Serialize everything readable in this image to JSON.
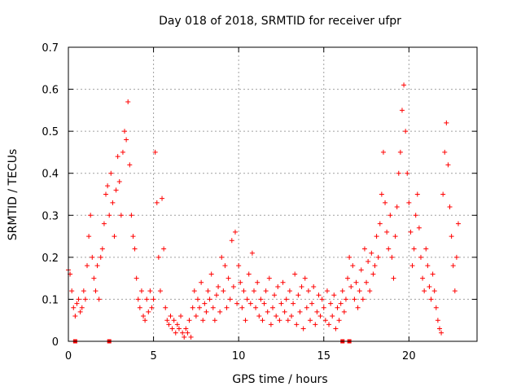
{
  "chart_data": {
    "type": "scatter",
    "title": "Day 018 of 2018, SRMTID for receiver ufpr",
    "xlabel": "GPS time / hours",
    "ylabel": "SRMTID / TECUs",
    "xlim": [
      0,
      24
    ],
    "ylim": [
      0,
      0.7
    ],
    "x_ticks": [
      0,
      5,
      10,
      15,
      20
    ],
    "x_tick_labels": [
      "0",
      "5",
      "10",
      "15",
      "20"
    ],
    "y_ticks": [
      0,
      0.1,
      0.2,
      0.3,
      0.4,
      0.5,
      0.6,
      0.7
    ],
    "y_tick_labels": [
      "0",
      "0.1",
      "0.2",
      "0.3",
      "0.4",
      "0.5",
      "0.6",
      "0.7"
    ],
    "grid": true,
    "marker": "plus",
    "color": "#ff0000",
    "data_gap_markers_x": [
      0.4,
      2.4,
      16.1,
      16.5
    ],
    "series": [
      {
        "name": "SRMTID",
        "points": [
          [
            0.0,
            0.17
          ],
          [
            0.1,
            0.16
          ],
          [
            0.2,
            0.12
          ],
          [
            0.3,
            0.08
          ],
          [
            0.4,
            0.06
          ],
          [
            0.5,
            0.09
          ],
          [
            0.6,
            0.1
          ],
          [
            0.7,
            0.07
          ],
          [
            0.8,
            0.08
          ],
          [
            0.9,
            0.12
          ],
          [
            1.0,
            0.1
          ],
          [
            1.1,
            0.18
          ],
          [
            1.2,
            0.25
          ],
          [
            1.3,
            0.3
          ],
          [
            1.4,
            0.2
          ],
          [
            1.5,
            0.15
          ],
          [
            1.6,
            0.12
          ],
          [
            1.7,
            0.18
          ],
          [
            1.8,
            0.1
          ],
          [
            1.9,
            0.2
          ],
          [
            2.0,
            0.22
          ],
          [
            2.1,
            0.28
          ],
          [
            2.2,
            0.35
          ],
          [
            2.3,
            0.37
          ],
          [
            2.4,
            0.3
          ],
          [
            2.5,
            0.4
          ],
          [
            2.6,
            0.33
          ],
          [
            2.7,
            0.25
          ],
          [
            2.8,
            0.36
          ],
          [
            2.9,
            0.44
          ],
          [
            3.0,
            0.38
          ],
          [
            3.1,
            0.3
          ],
          [
            3.2,
            0.45
          ],
          [
            3.3,
            0.5
          ],
          [
            3.4,
            0.48
          ],
          [
            3.5,
            0.57
          ],
          [
            3.6,
            0.42
          ],
          [
            3.7,
            0.3
          ],
          [
            3.8,
            0.25
          ],
          [
            3.9,
            0.22
          ],
          [
            4.0,
            0.15
          ],
          [
            4.1,
            0.1
          ],
          [
            4.2,
            0.08
          ],
          [
            4.3,
            0.12
          ],
          [
            4.4,
            0.06
          ],
          [
            4.5,
            0.05
          ],
          [
            4.6,
            0.1
          ],
          [
            4.7,
            0.07
          ],
          [
            4.8,
            0.12
          ],
          [
            4.9,
            0.08
          ],
          [
            5.0,
            0.1
          ],
          [
            5.1,
            0.45
          ],
          [
            5.2,
            0.33
          ],
          [
            5.3,
            0.2
          ],
          [
            5.4,
            0.12
          ],
          [
            5.5,
            0.34
          ],
          [
            5.6,
            0.22
          ],
          [
            5.7,
            0.08
          ],
          [
            5.8,
            0.05
          ],
          [
            5.9,
            0.04
          ],
          [
            6.0,
            0.06
          ],
          [
            6.1,
            0.03
          ],
          [
            6.2,
            0.05
          ],
          [
            6.3,
            0.02
          ],
          [
            6.4,
            0.04
          ],
          [
            6.5,
            0.03
          ],
          [
            6.6,
            0.06
          ],
          [
            6.7,
            0.02
          ],
          [
            6.8,
            0.01
          ],
          [
            6.9,
            0.03
          ],
          [
            7.0,
            0.02
          ],
          [
            7.1,
            0.05
          ],
          [
            7.2,
            0.01
          ],
          [
            7.3,
            0.08
          ],
          [
            7.4,
            0.12
          ],
          [
            7.5,
            0.06
          ],
          [
            7.6,
            0.1
          ],
          [
            7.7,
            0.08
          ],
          [
            7.8,
            0.14
          ],
          [
            7.9,
            0.05
          ],
          [
            8.0,
            0.09
          ],
          [
            8.1,
            0.07
          ],
          [
            8.2,
            0.12
          ],
          [
            8.3,
            0.1
          ],
          [
            8.4,
            0.16
          ],
          [
            8.5,
            0.08
          ],
          [
            8.6,
            0.05
          ],
          [
            8.7,
            0.11
          ],
          [
            8.8,
            0.13
          ],
          [
            8.9,
            0.07
          ],
          [
            9.0,
            0.2
          ],
          [
            9.1,
            0.12
          ],
          [
            9.2,
            0.18
          ],
          [
            9.3,
            0.08
          ],
          [
            9.4,
            0.15
          ],
          [
            9.5,
            0.1
          ],
          [
            9.6,
            0.24
          ],
          [
            9.7,
            0.13
          ],
          [
            9.8,
            0.26
          ],
          [
            9.9,
            0.09
          ],
          [
            10.0,
            0.18
          ],
          [
            10.1,
            0.14
          ],
          [
            10.2,
            0.08
          ],
          [
            10.3,
            0.12
          ],
          [
            10.4,
            0.05
          ],
          [
            10.5,
            0.1
          ],
          [
            10.6,
            0.16
          ],
          [
            10.7,
            0.09
          ],
          [
            10.8,
            0.21
          ],
          [
            10.9,
            0.12
          ],
          [
            11.0,
            0.08
          ],
          [
            11.1,
            0.14
          ],
          [
            11.2,
            0.06
          ],
          [
            11.3,
            0.1
          ],
          [
            11.4,
            0.05
          ],
          [
            11.5,
            0.09
          ],
          [
            11.6,
            0.12
          ],
          [
            11.7,
            0.07
          ],
          [
            11.8,
            0.15
          ],
          [
            11.9,
            0.04
          ],
          [
            12.0,
            0.08
          ],
          [
            12.1,
            0.11
          ],
          [
            12.2,
            0.06
          ],
          [
            12.3,
            0.13
          ],
          [
            12.4,
            0.05
          ],
          [
            12.5,
            0.09
          ],
          [
            12.6,
            0.14
          ],
          [
            12.7,
            0.07
          ],
          [
            12.8,
            0.1
          ],
          [
            12.9,
            0.05
          ],
          [
            13.0,
            0.12
          ],
          [
            13.1,
            0.06
          ],
          [
            13.2,
            0.09
          ],
          [
            13.3,
            0.16
          ],
          [
            13.4,
            0.04
          ],
          [
            13.5,
            0.11
          ],
          [
            13.6,
            0.07
          ],
          [
            13.7,
            0.13
          ],
          [
            13.8,
            0.03
          ],
          [
            13.9,
            0.15
          ],
          [
            14.0,
            0.08
          ],
          [
            14.1,
            0.12
          ],
          [
            14.2,
            0.05
          ],
          [
            14.3,
            0.09
          ],
          [
            14.4,
            0.13
          ],
          [
            14.5,
            0.04
          ],
          [
            14.6,
            0.07
          ],
          [
            14.7,
            0.11
          ],
          [
            14.8,
            0.06
          ],
          [
            14.9,
            0.1
          ],
          [
            15.0,
            0.08
          ],
          [
            15.1,
            0.05
          ],
          [
            15.2,
            0.12
          ],
          [
            15.3,
            0.04
          ],
          [
            15.4,
            0.09
          ],
          [
            15.5,
            0.06
          ],
          [
            15.6,
            0.11
          ],
          [
            15.7,
            0.03
          ],
          [
            15.8,
            0.08
          ],
          [
            15.9,
            0.05
          ],
          [
            16.0,
            0.09
          ],
          [
            16.1,
            0.12
          ],
          [
            16.2,
            0.07
          ],
          [
            16.3,
            0.1
          ],
          [
            16.4,
            0.15
          ],
          [
            16.5,
            0.2
          ],
          [
            16.6,
            0.13
          ],
          [
            16.7,
            0.18
          ],
          [
            16.8,
            0.1
          ],
          [
            16.9,
            0.14
          ],
          [
            17.0,
            0.08
          ],
          [
            17.1,
            0.12
          ],
          [
            17.2,
            0.17
          ],
          [
            17.3,
            0.1
          ],
          [
            17.4,
            0.22
          ],
          [
            17.5,
            0.14
          ],
          [
            17.6,
            0.19
          ],
          [
            17.7,
            0.12
          ],
          [
            17.8,
            0.21
          ],
          [
            17.9,
            0.16
          ],
          [
            18.0,
            0.18
          ],
          [
            18.1,
            0.25
          ],
          [
            18.2,
            0.2
          ],
          [
            18.3,
            0.28
          ],
          [
            18.4,
            0.35
          ],
          [
            18.5,
            0.45
          ],
          [
            18.6,
            0.33
          ],
          [
            18.7,
            0.26
          ],
          [
            18.8,
            0.22
          ],
          [
            18.9,
            0.3
          ],
          [
            19.0,
            0.2
          ],
          [
            19.1,
            0.15
          ],
          [
            19.2,
            0.25
          ],
          [
            19.3,
            0.32
          ],
          [
            19.4,
            0.4
          ],
          [
            19.5,
            0.45
          ],
          [
            19.6,
            0.55
          ],
          [
            19.7,
            0.61
          ],
          [
            19.8,
            0.5
          ],
          [
            19.9,
            0.4
          ],
          [
            20.0,
            0.33
          ],
          [
            20.1,
            0.26
          ],
          [
            20.2,
            0.18
          ],
          [
            20.3,
            0.22
          ],
          [
            20.4,
            0.3
          ],
          [
            20.5,
            0.35
          ],
          [
            20.6,
            0.27
          ],
          [
            20.7,
            0.2
          ],
          [
            20.8,
            0.15
          ],
          [
            20.9,
            0.12
          ],
          [
            21.0,
            0.22
          ],
          [
            21.1,
            0.18
          ],
          [
            21.2,
            0.13
          ],
          [
            21.3,
            0.1
          ],
          [
            21.4,
            0.16
          ],
          [
            21.5,
            0.12
          ],
          [
            21.6,
            0.08
          ],
          [
            21.7,
            0.05
          ],
          [
            21.8,
            0.03
          ],
          [
            21.9,
            0.02
          ],
          [
            22.0,
            0.35
          ],
          [
            22.1,
            0.45
          ],
          [
            22.2,
            0.52
          ],
          [
            22.3,
            0.42
          ],
          [
            22.4,
            0.32
          ],
          [
            22.5,
            0.25
          ],
          [
            22.6,
            0.18
          ],
          [
            22.7,
            0.12
          ],
          [
            22.8,
            0.2
          ],
          [
            22.9,
            0.28
          ]
        ]
      }
    ]
  }
}
